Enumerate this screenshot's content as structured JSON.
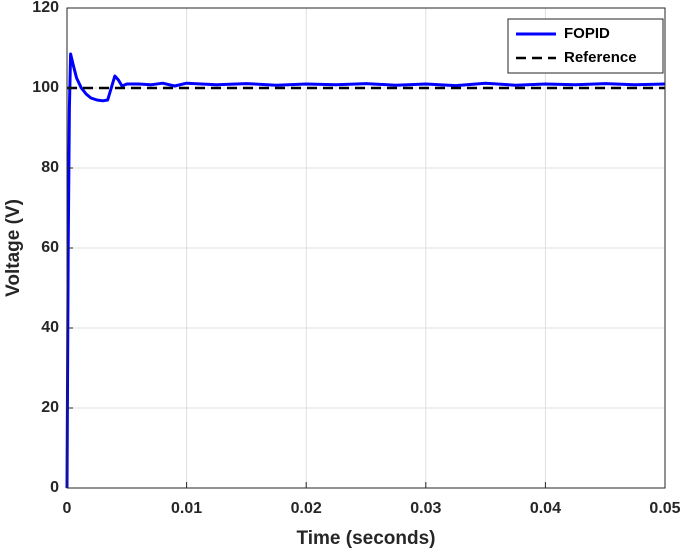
{
  "chart_data": {
    "type": "line",
    "xlabel": "Time (seconds)",
    "ylabel": "Voltage (V)",
    "xlim": [
      0,
      0.05
    ],
    "ylim": [
      0,
      120
    ],
    "xticks": [
      0,
      0.01,
      0.02,
      0.03,
      0.04,
      0.05
    ],
    "yticks": [
      0,
      20,
      40,
      60,
      80,
      100,
      120
    ],
    "grid": true,
    "legend": "northeast",
    "series": [
      {
        "name": "FOPID",
        "color": "#0000ff",
        "style": "solid",
        "x": [
          0,
          0.0001,
          0.0002,
          0.0003,
          0.0005,
          0.0008,
          0.0012,
          0.0016,
          0.002,
          0.0025,
          0.003,
          0.0034,
          0.0037,
          0.004,
          0.0043,
          0.0046,
          0.005,
          0.006,
          0.007,
          0.008,
          0.009,
          0.01,
          0.0125,
          0.015,
          0.0175,
          0.02,
          0.0225,
          0.025,
          0.0275,
          0.03,
          0.0325,
          0.035,
          0.0375,
          0.04,
          0.0425,
          0.045,
          0.0475,
          0.05
        ],
        "values": [
          0,
          60,
          95,
          108.5,
          106,
          102.5,
          100,
          98.5,
          97.5,
          97,
          96.8,
          97,
          100,
          103,
          102,
          100.5,
          101,
          101,
          100.8,
          101.2,
          100.5,
          101.2,
          100.8,
          101.1,
          100.7,
          101,
          100.8,
          101.1,
          100.7,
          101,
          100.6,
          101.2,
          100.7,
          101,
          100.8,
          101.1,
          100.8,
          101
        ]
      },
      {
        "name": "Reference",
        "color": "#000000",
        "style": "dashed",
        "x": [
          0,
          0.05
        ],
        "values": [
          100,
          100
        ]
      }
    ]
  }
}
